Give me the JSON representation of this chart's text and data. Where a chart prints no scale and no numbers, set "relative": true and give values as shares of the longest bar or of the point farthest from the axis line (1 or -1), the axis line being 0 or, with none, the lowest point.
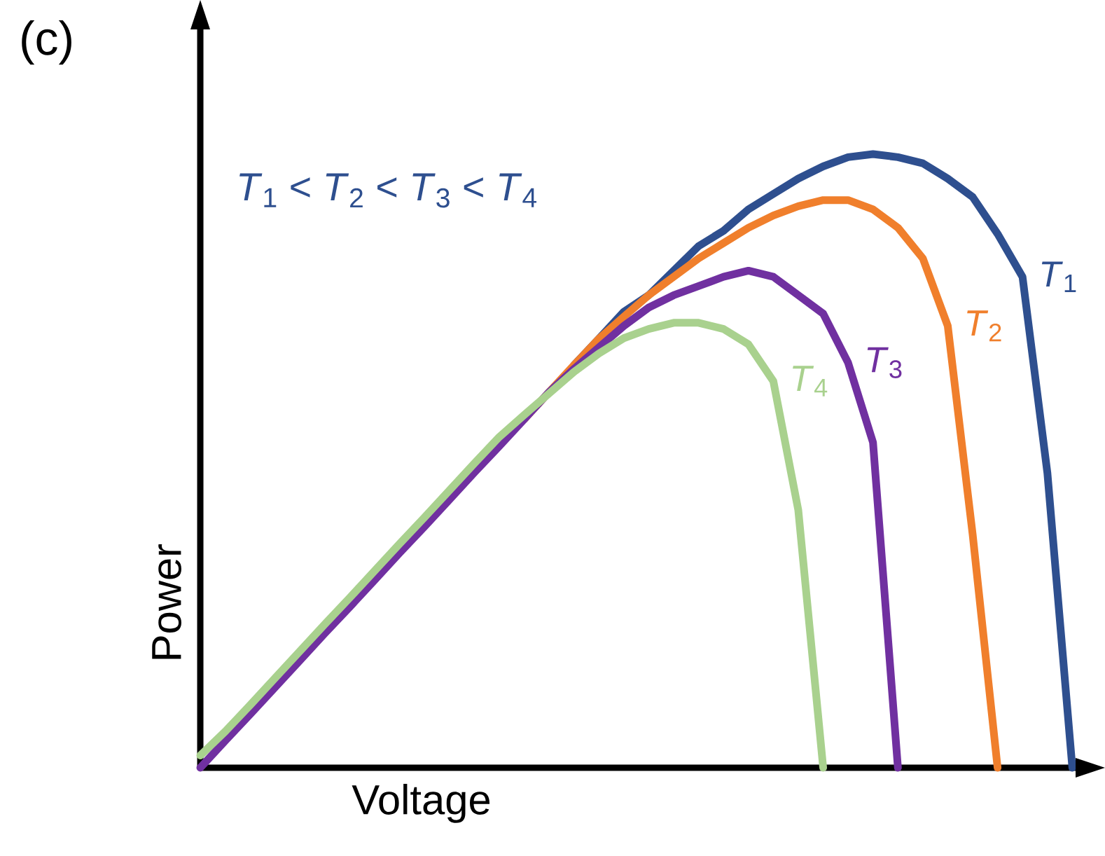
{
  "chart_data": {
    "type": "line",
    "title": "(c)",
    "xlabel": "Voltage",
    "ylabel": "Power",
    "relative": true,
    "annotations": [
      "*T*$_{1}$ < *T*$_{2}$ < *T*$_{3}$ < *T*$_{4}$"
    ],
    "categories": [
      null,
      null,
      null,
      null,
      null,
      null,
      null,
      null,
      null,
      null,
      null,
      null,
      null,
      null,
      null,
      null,
      null,
      null,
      null,
      null,
      null,
      null,
      null,
      null,
      null,
      null,
      null,
      null,
      null,
      null,
      null,
      null,
      null,
      null,
      null,
      null
    ],
    "series": [
      {
        "name": "*T*$_{1}$",
        "color": "#2e4f8f",
        "values": [
          null,
          null,
          null,
          null,
          null,
          null,
          null,
          null,
          null,
          null,
          null,
          null,
          null,
          null,
          null,
          0.656,
          0.699,
          0.743,
          0.77,
          0.81,
          0.85,
          0.875,
          0.91,
          0.935,
          0.96,
          0.98,
          0.995,
          1.0,
          0.995,
          0.985,
          0.96,
          0.93,
          0.87,
          0.8,
          0.48,
          0
        ]
      },
      {
        "name": "*T*$_{2}$",
        "color": "#f07f2c",
        "values": [
          null,
          null,
          null,
          null,
          null,
          null,
          null,
          null,
          null,
          null,
          null,
          null,
          null,
          0.568,
          0.612,
          0.656,
          0.699,
          0.735,
          0.77,
          0.8,
          0.83,
          0.855,
          0.88,
          0.9,
          0.915,
          0.925,
          0.925,
          0.91,
          0.88,
          0.83,
          0.72,
          0.38,
          0,
          null,
          null,
          null
        ]
      },
      {
        "name": "*T*$_{3}$",
        "color": "#7030a0",
        "values": [
          0,
          0.044,
          0.087,
          0.131,
          0.175,
          0.219,
          0.262,
          0.306,
          0.35,
          0.393,
          0.437,
          0.481,
          0.524,
          0.568,
          0.612,
          0.65,
          0.685,
          0.72,
          0.75,
          0.77,
          0.785,
          0.8,
          0.81,
          0.8,
          0.77,
          0.74,
          0.66,
          0.53,
          0,
          null,
          null,
          null,
          null,
          null,
          null,
          null
        ]
      },
      {
        "name": "*T*$_{4}$",
        "color": "#a9d18e",
        "values": [
          0.02,
          0.059,
          0.102,
          0.146,
          0.19,
          0.234,
          0.277,
          0.321,
          0.365,
          0.408,
          0.452,
          0.496,
          0.539,
          0.575,
          0.61,
          0.645,
          0.675,
          0.7,
          0.715,
          0.725,
          0.725,
          0.715,
          0.69,
          0.63,
          0.42,
          0,
          null,
          null,
          null,
          null,
          null,
          null,
          null,
          null,
          null,
          null
        ]
      }
    ]
  }
}
